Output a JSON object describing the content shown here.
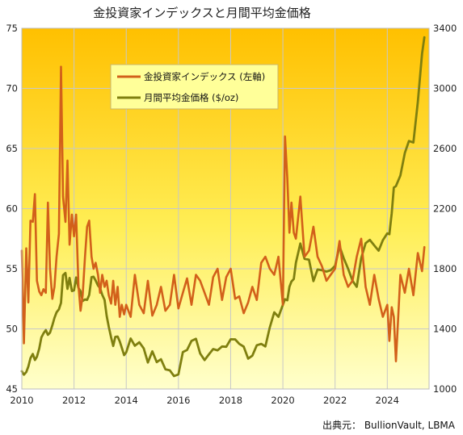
{
  "chart_data": {
    "type": "line",
    "title": "金投資家インデックスと月間平均金価格",
    "source": "出典元： BullionVault, LBMA",
    "x_ticks": [
      "2010",
      "2012",
      "2014",
      "2016",
      "2018",
      "2020",
      "2022",
      "2024"
    ],
    "y_left": {
      "ylim": [
        45,
        75
      ],
      "ticks": [
        "45",
        "50",
        "55",
        "60",
        "65",
        "70",
        "75"
      ]
    },
    "y_right": {
      "ylim": [
        1000,
        3400
      ],
      "ticks": [
        "1000",
        "1400",
        "1800",
        "2200",
        "2600",
        "3000",
        "3400"
      ]
    },
    "legend_placement": "top-left",
    "grid": true,
    "colors": {
      "index": "#d2601a",
      "gold": "#7f7f0f",
      "bg_top": "#ffc000",
      "bg_bottom": "#ffffcc"
    },
    "series": [
      {
        "name": "金投資家インデックス (左軸)",
        "axis": "left",
        "x": [
          2010.0,
          2010.08,
          2010.17,
          2010.25,
          2010.33,
          2010.42,
          2010.5,
          2010.58,
          2010.67,
          2010.75,
          2010.83,
          2010.92,
          2011.0,
          2011.08,
          2011.17,
          2011.25,
          2011.33,
          2011.42,
          2011.5,
          2011.58,
          2011.67,
          2011.75,
          2011.83,
          2011.92,
          2012.0,
          2012.08,
          2012.17,
          2012.25,
          2012.33,
          2012.42,
          2012.5,
          2012.58,
          2012.67,
          2012.75,
          2012.83,
          2012.92,
          2013.0,
          2013.08,
          2013.17,
          2013.25,
          2013.33,
          2013.42,
          2013.5,
          2013.58,
          2013.67,
          2013.75,
          2013.83,
          2013.92,
          2014.0,
          2014.17,
          2014.33,
          2014.5,
          2014.67,
          2014.83,
          2015.0,
          2015.17,
          2015.33,
          2015.5,
          2015.67,
          2015.83,
          2016.0,
          2016.17,
          2016.33,
          2016.5,
          2016.67,
          2016.83,
          2017.0,
          2017.17,
          2017.33,
          2017.5,
          2017.67,
          2017.83,
          2018.0,
          2018.17,
          2018.33,
          2018.5,
          2018.67,
          2018.83,
          2019.0,
          2019.17,
          2019.33,
          2019.5,
          2019.67,
          2019.83,
          2020.0,
          2020.08,
          2020.17,
          2020.25,
          2020.33,
          2020.42,
          2020.5,
          2020.67,
          2020.83,
          2021.0,
          2021.17,
          2021.33,
          2021.5,
          2021.67,
          2021.83,
          2022.0,
          2022.17,
          2022.33,
          2022.5,
          2022.67,
          2022.83,
          2023.0,
          2023.17,
          2023.33,
          2023.5,
          2023.67,
          2023.83,
          2024.0,
          2024.08,
          2024.17,
          2024.25,
          2024.33,
          2024.5,
          2024.67,
          2024.83,
          2025.0,
          2025.17,
          2025.33,
          2025.42
        ],
        "values": [
          56.5,
          48.8,
          56.7,
          52.2,
          59.0,
          58.9,
          61.2,
          54.0,
          53.1,
          52.8,
          53.3,
          53.0,
          60.5,
          55.0,
          52.5,
          53.5,
          56.0,
          57.9,
          71.8,
          61.0,
          58.9,
          64.0,
          57.0,
          59.5,
          57.7,
          59.5,
          53.6,
          51.5,
          52.8,
          56.0,
          58.5,
          59.0,
          56.0,
          55.0,
          55.5,
          54.5,
          53.0,
          54.5,
          53.5,
          54.0,
          52.8,
          52.1,
          54.0,
          52.0,
          53.5,
          51.0,
          52.0,
          51.2,
          52.0,
          51.0,
          54.5,
          52.0,
          51.3,
          54.0,
          51.1,
          52.0,
          53.5,
          51.5,
          52.0,
          54.5,
          51.7,
          53.0,
          54.2,
          52.0,
          54.5,
          54.0,
          53.0,
          52.0,
          54.3,
          55.0,
          52.4,
          54.3,
          55.0,
          52.5,
          52.7,
          51.3,
          52.2,
          53.5,
          52.4,
          55.5,
          56.0,
          55.0,
          54.5,
          56.0,
          52.0,
          66.0,
          62.5,
          58.0,
          60.5,
          58.0,
          57.5,
          61.0,
          56.0,
          56.5,
          58.5,
          56.0,
          55.2,
          54.0,
          54.5,
          55.0,
          57.3,
          54.5,
          53.5,
          54.0,
          56.0,
          57.5,
          53.5,
          52.0,
          54.5,
          52.5,
          51.0,
          52.0,
          49.0,
          51.8,
          51.0,
          47.3,
          54.5,
          53.0,
          55.0,
          52.8,
          56.3,
          54.8,
          56.8
        ]
      },
      {
        "name": "月間平均金価格 ($/oz)",
        "axis": "right",
        "x": [
          2010.0,
          2010.08,
          2010.17,
          2010.25,
          2010.33,
          2010.42,
          2010.5,
          2010.58,
          2010.67,
          2010.75,
          2010.83,
          2010.92,
          2011.0,
          2011.08,
          2011.17,
          2011.25,
          2011.33,
          2011.42,
          2011.5,
          2011.58,
          2011.67,
          2011.75,
          2011.83,
          2011.92,
          2012.0,
          2012.08,
          2012.17,
          2012.25,
          2012.33,
          2012.42,
          2012.5,
          2012.58,
          2012.67,
          2012.75,
          2012.83,
          2012.92,
          2013.0,
          2013.08,
          2013.17,
          2013.25,
          2013.33,
          2013.42,
          2013.5,
          2013.58,
          2013.67,
          2013.75,
          2013.83,
          2013.92,
          2014.0,
          2014.17,
          2014.33,
          2014.5,
          2014.67,
          2014.83,
          2015.0,
          2015.17,
          2015.33,
          2015.5,
          2015.67,
          2015.83,
          2016.0,
          2016.17,
          2016.33,
          2016.5,
          2016.67,
          2016.83,
          2017.0,
          2017.17,
          2017.33,
          2017.5,
          2017.67,
          2017.83,
          2018.0,
          2018.17,
          2018.33,
          2018.5,
          2018.67,
          2018.83,
          2019.0,
          2019.17,
          2019.33,
          2019.5,
          2019.67,
          2019.83,
          2020.0,
          2020.08,
          2020.17,
          2020.25,
          2020.33,
          2020.42,
          2020.5,
          2020.67,
          2020.83,
          2021.0,
          2021.17,
          2021.33,
          2021.5,
          2021.67,
          2021.83,
          2022.0,
          2022.17,
          2022.33,
          2022.5,
          2022.67,
          2022.83,
          2023.0,
          2023.17,
          2023.33,
          2023.5,
          2023.67,
          2023.83,
          2024.0,
          2024.08,
          2024.17,
          2024.25,
          2024.33,
          2024.5,
          2024.67,
          2024.83,
          2025.0,
          2025.17,
          2025.33,
          2025.42
        ],
        "values": [
          1118,
          1095,
          1113,
          1150,
          1205,
          1233,
          1193,
          1215,
          1270,
          1343,
          1370,
          1392,
          1360,
          1375,
          1424,
          1473,
          1510,
          1530,
          1573,
          1757,
          1772,
          1666,
          1739,
          1652,
          1656,
          1742,
          1673,
          1650,
          1585,
          1596,
          1593,
          1626,
          1744,
          1747,
          1721,
          1688,
          1671,
          1627,
          1593,
          1487,
          1414,
          1343,
          1286,
          1347,
          1349,
          1316,
          1275,
          1225,
          1244,
          1336,
          1288,
          1311,
          1270,
          1176,
          1251,
          1179,
          1198,
          1131,
          1124,
          1086,
          1097,
          1246,
          1260,
          1320,
          1334,
          1236,
          1192,
          1231,
          1266,
          1257,
          1283,
          1281,
          1331,
          1330,
          1300,
          1282,
          1202,
          1222,
          1291,
          1300,
          1283,
          1410,
          1510,
          1480,
          1560,
          1597,
          1590,
          1680,
          1715,
          1732,
          1840,
          1968,
          1866,
          1860,
          1718,
          1795,
          1790,
          1781,
          1790,
          1820,
          1950,
          1870,
          1800,
          1720,
          1680,
          1870,
          1970,
          1992,
          1955,
          1920,
          1990,
          2035,
          2030,
          2170,
          2340,
          2350,
          2420,
          2570,
          2650,
          2640,
          2910,
          3230,
          3340
        ]
      }
    ]
  }
}
